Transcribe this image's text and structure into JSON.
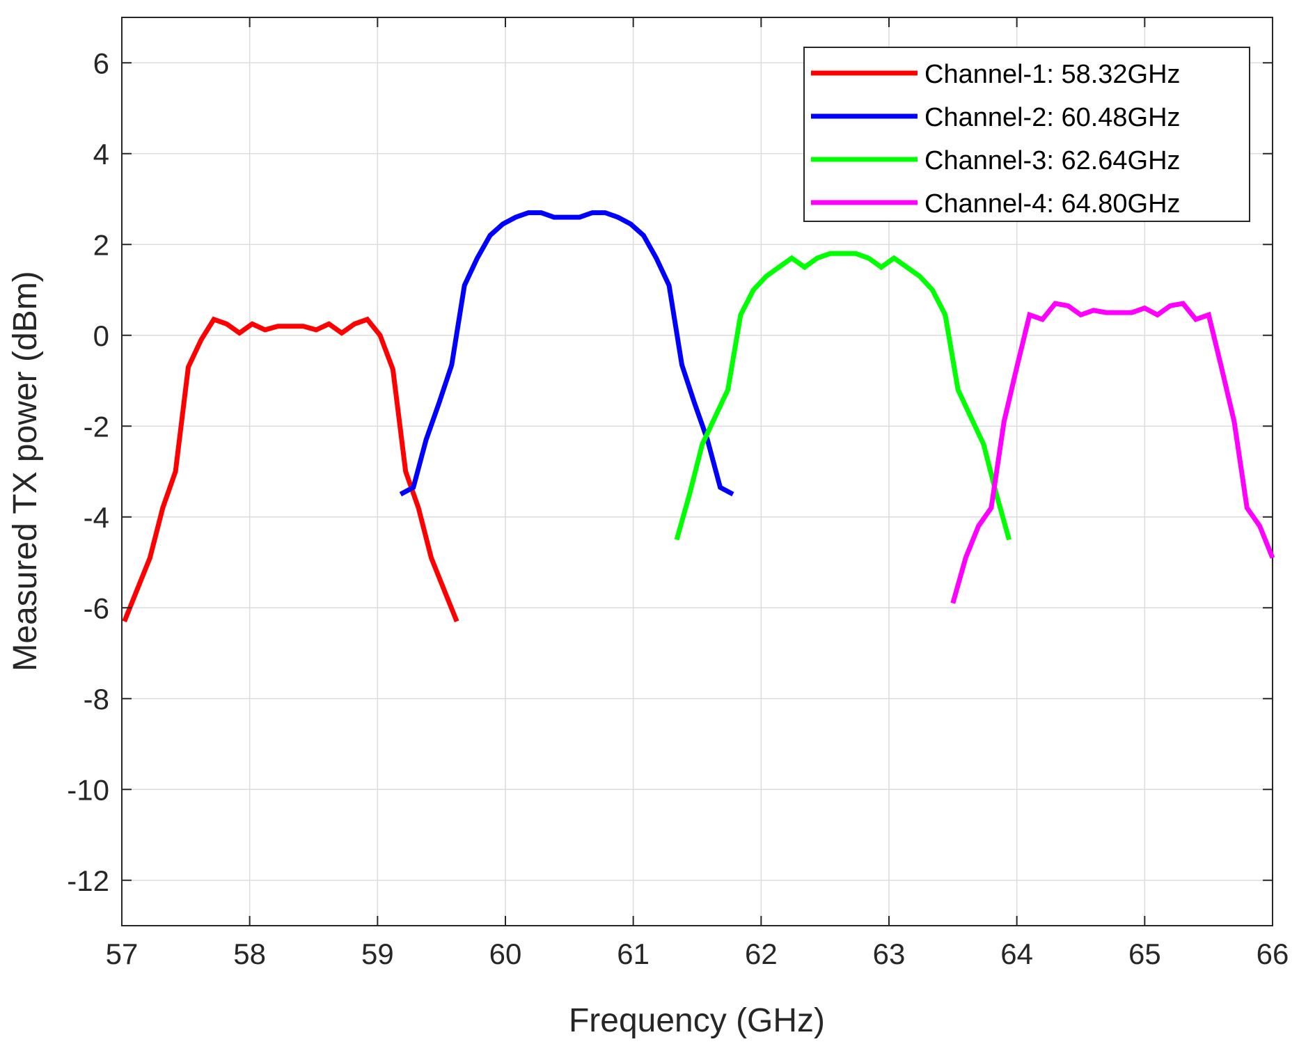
{
  "chart_data": {
    "type": "line",
    "title": "",
    "xlabel": "Frequency (GHz)",
    "ylabel": "Measured TX power (dBm)",
    "xlim": [
      57,
      66
    ],
    "ylim": [
      -13,
      7
    ],
    "xticks": [
      57,
      58,
      59,
      60,
      61,
      62,
      63,
      64,
      65,
      66
    ],
    "yticks": [
      -12,
      -10,
      -8,
      -6,
      -4,
      -2,
      0,
      2,
      4,
      6
    ],
    "grid": true,
    "legend_position": "top-right",
    "series": [
      {
        "name": "Channel-1: 58.32GHz",
        "color": "#ff0000",
        "x": [
          57.02,
          57.12,
          57.22,
          57.32,
          57.42,
          57.52,
          57.62,
          57.72,
          57.82,
          57.92,
          58.02,
          58.12,
          58.22,
          58.32,
          58.42,
          58.52,
          58.62,
          58.72,
          58.82,
          58.92,
          59.02,
          59.12,
          59.22,
          59.32,
          59.42,
          59.52,
          59.62
        ],
        "y": [
          -6.3,
          -5.6,
          -4.9,
          -3.8,
          -3.0,
          -0.7,
          -0.1,
          0.35,
          0.25,
          0.05,
          0.25,
          0.12,
          0.2,
          0.2,
          0.2,
          0.12,
          0.25,
          0.05,
          0.25,
          0.35,
          0.0,
          -0.75,
          -3.0,
          -3.8,
          -4.9,
          -5.6,
          -6.3
        ]
      },
      {
        "name": "Channel-2: 60.48GHz",
        "color": "#0000ff",
        "x": [
          59.18,
          59.28,
          59.38,
          59.48,
          59.58,
          59.68,
          59.78,
          59.88,
          59.98,
          60.08,
          60.18,
          60.28,
          60.38,
          60.48,
          60.58,
          60.68,
          60.78,
          60.88,
          60.98,
          61.08,
          61.18,
          61.28,
          61.38,
          61.48,
          61.58,
          61.68,
          61.78
        ],
        "y": [
          -3.5,
          -3.35,
          -2.3,
          -1.5,
          -0.65,
          1.1,
          1.7,
          2.2,
          2.45,
          2.6,
          2.7,
          2.7,
          2.6,
          2.6,
          2.6,
          2.7,
          2.7,
          2.6,
          2.45,
          2.2,
          1.7,
          1.1,
          -0.65,
          -1.5,
          -2.3,
          -3.35,
          -3.5
        ]
      },
      {
        "name": "Channel-3: 62.64GHz",
        "color": "#00ff00",
        "x": [
          61.34,
          61.44,
          61.54,
          61.64,
          61.74,
          61.84,
          61.94,
          62.04,
          62.14,
          62.24,
          62.34,
          62.44,
          62.54,
          62.64,
          62.74,
          62.84,
          62.94,
          63.04,
          63.14,
          63.24,
          63.34,
          63.44,
          63.54,
          63.64,
          63.74,
          63.84,
          63.94
        ],
        "y": [
          -4.5,
          -3.5,
          -2.4,
          -1.8,
          -1.2,
          0.45,
          1.0,
          1.3,
          1.5,
          1.7,
          1.5,
          1.7,
          1.8,
          1.8,
          1.8,
          1.7,
          1.5,
          1.7,
          1.5,
          1.3,
          1.0,
          0.45,
          -1.2,
          -1.8,
          -2.4,
          -3.5,
          -4.5
        ]
      },
      {
        "name": "Channel-4: 64.80GHz",
        "color": "#ff00ff",
        "x": [
          63.5,
          63.6,
          63.7,
          63.8,
          63.9,
          64.0,
          64.1,
          64.2,
          64.3,
          64.4,
          64.5,
          64.6,
          64.7,
          64.8,
          64.9,
          65.0,
          65.1,
          65.2,
          65.3,
          65.4,
          65.5,
          65.6,
          65.7,
          65.8,
          65.9,
          66.0
        ],
        "y": [
          -5.9,
          -4.9,
          -4.2,
          -3.8,
          -1.9,
          -0.7,
          0.45,
          0.35,
          0.7,
          0.65,
          0.45,
          0.55,
          0.5,
          0.5,
          0.5,
          0.6,
          0.45,
          0.65,
          0.7,
          0.35,
          0.45,
          -0.7,
          -1.9,
          -3.8,
          -4.2,
          -4.9
        ]
      }
    ]
  }
}
